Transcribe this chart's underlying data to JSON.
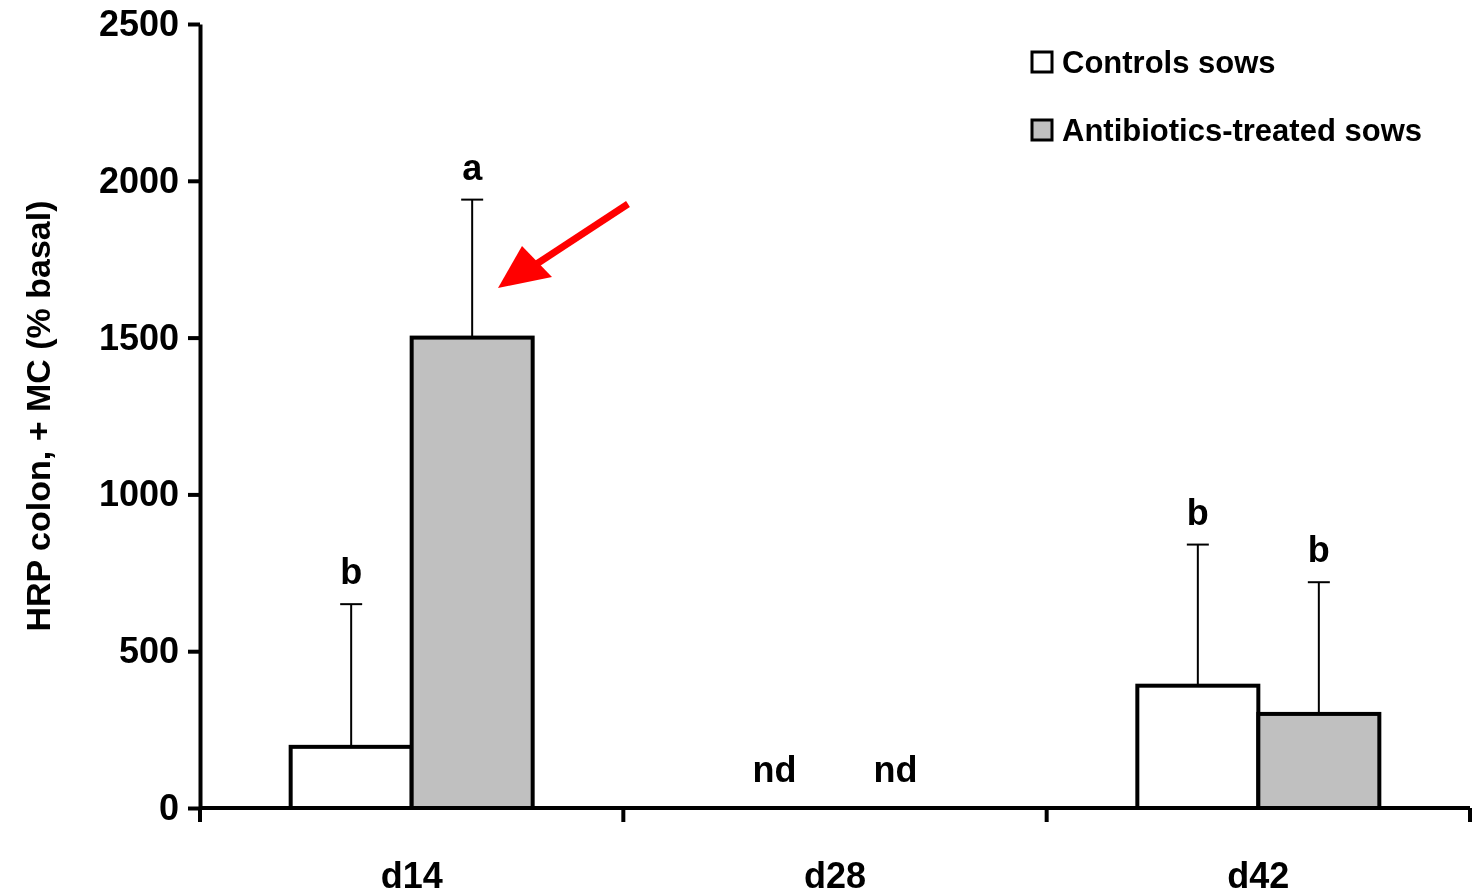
{
  "chart_data": {
    "type": "bar",
    "ylabel": "HRP colon, + MC (% basal)",
    "categories": [
      "d14",
      "d28",
      "d42"
    ],
    "series": [
      {
        "name": "Controls sows",
        "color": "#ffffff",
        "values": [
          195,
          null,
          390
        ],
        "errors": [
          [
            195,
            650
          ],
          null,
          [
            390,
            840
          ]
        ]
      },
      {
        "name": "Antibiotics-treated sows",
        "color": "#c0c0c0",
        "values": [
          1500,
          null,
          300
        ],
        "errors": [
          [
            1500,
            1940
          ],
          null,
          [
            300,
            720
          ]
        ]
      }
    ],
    "ylim": [
      0,
      2500
    ],
    "yticks": [
      0,
      500,
      1000,
      1500,
      2000,
      2500
    ],
    "grid": false,
    "legend": "top right",
    "annotations": [
      "b",
      "a",
      "nd",
      "nd",
      "b",
      "b"
    ]
  }
}
